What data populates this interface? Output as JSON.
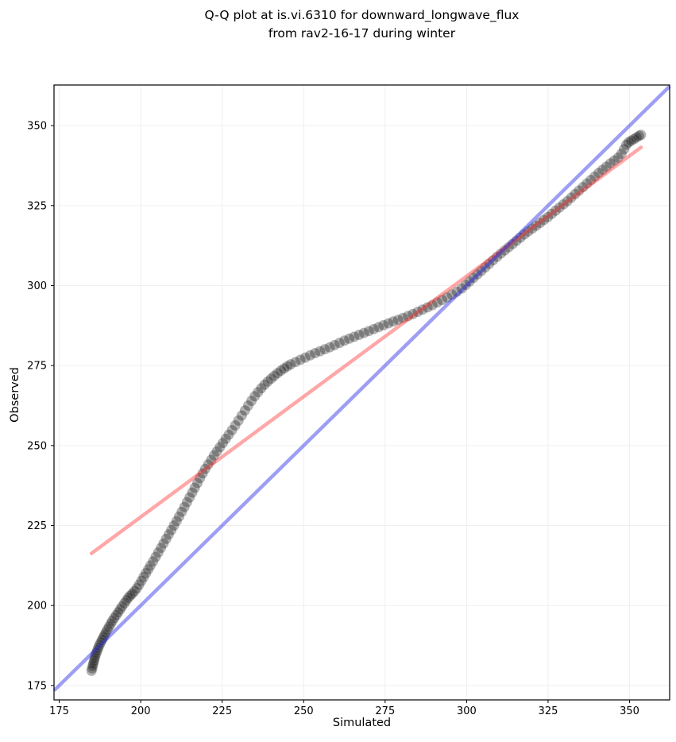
{
  "chart_data": {
    "type": "scatter",
    "subtype": "qq-plot",
    "title": "Q-Q plot at is.vi.6310 for downward_longwave_flux\nfrom rav2-16-17 during winter",
    "title_line1": "Q-Q plot at is.vi.6310 for downward_longwave_flux",
    "title_line2": "from rav2-16-17 during winter",
    "xlabel": "Simulated",
    "ylabel": "Observed",
    "xlim": [
      173.4,
      362.3
    ],
    "ylim": [
      170.5,
      362.7
    ],
    "xticks": [
      175,
      200,
      225,
      250,
      275,
      300,
      325,
      350
    ],
    "yticks": [
      175,
      200,
      225,
      250,
      275,
      300,
      325,
      350
    ],
    "grid": true,
    "grid_color": "#efefef",
    "axis_color": "#000000",
    "legend_position": "none",
    "identity_line": {
      "label": "identity y = x",
      "color": "rgba(40,40,230,0.45)",
      "width": 4.5,
      "x": [
        173.4,
        362.3
      ],
      "y": [
        173.4,
        362.3
      ]
    },
    "fit_line": {
      "label": "linear fit",
      "color": "rgba(255,45,45,0.42)",
      "width": 4.5,
      "x": [
        184.9,
        353.5
      ],
      "y": [
        216.3,
        343.2
      ]
    },
    "point_style": {
      "color": "#000000",
      "opacity": 0.3,
      "radius_px": 6.5
    },
    "points": [
      [
        184.9,
        179.6
      ],
      [
        185.1,
        180.4
      ],
      [
        185.3,
        181.2
      ],
      [
        185.5,
        182.0
      ],
      [
        185.7,
        182.8
      ],
      [
        185.9,
        183.6
      ],
      [
        186.1,
        184.4
      ],
      [
        186.4,
        185.2
      ],
      [
        186.7,
        186.0
      ],
      [
        187.0,
        186.8
      ],
      [
        187.3,
        187.6
      ],
      [
        187.7,
        188.4
      ],
      [
        188.1,
        189.2
      ],
      [
        188.5,
        190.0
      ],
      [
        188.9,
        190.8
      ],
      [
        189.3,
        191.6
      ],
      [
        189.8,
        192.5
      ],
      [
        190.3,
        193.4
      ],
      [
        190.8,
        194.3
      ],
      [
        191.3,
        195.2
      ],
      [
        191.9,
        196.1
      ],
      [
        192.5,
        197.0
      ],
      [
        193.1,
        197.9
      ],
      [
        193.7,
        198.8
      ],
      [
        194.3,
        199.7
      ],
      [
        195.0,
        200.7
      ],
      [
        195.6,
        201.6
      ],
      [
        196.2,
        202.4
      ],
      [
        196.8,
        203.1
      ],
      [
        197.4,
        203.7
      ],
      [
        198.1,
        204.5
      ],
      [
        198.8,
        205.4
      ],
      [
        199.5,
        206.5
      ],
      [
        200.2,
        207.7
      ],
      [
        200.9,
        208.9
      ],
      [
        201.6,
        210.1
      ],
      [
        202.3,
        211.3
      ],
      [
        203.0,
        212.5
      ],
      [
        203.8,
        213.8
      ],
      [
        204.6,
        215.2
      ],
      [
        205.4,
        216.6
      ],
      [
        206.2,
        218.0
      ],
      [
        207.0,
        219.4
      ],
      [
        207.8,
        220.8
      ],
      [
        208.6,
        222.2
      ],
      [
        209.4,
        223.6
      ],
      [
        210.2,
        225.0
      ],
      [
        211.0,
        226.4
      ],
      [
        211.8,
        227.8
      ],
      [
        212.6,
        229.3
      ],
      [
        213.4,
        230.8
      ],
      [
        214.2,
        232.3
      ],
      [
        215.0,
        233.8
      ],
      [
        215.8,
        235.3
      ],
      [
        216.6,
        236.8
      ],
      [
        217.4,
        238.3
      ],
      [
        218.2,
        239.8
      ],
      [
        219.0,
        241.3
      ],
      [
        219.8,
        242.7
      ],
      [
        220.7,
        244.1
      ],
      [
        221.6,
        245.5
      ],
      [
        222.5,
        246.9
      ],
      [
        223.4,
        248.2
      ],
      [
        224.3,
        249.5
      ],
      [
        225.2,
        250.8
      ],
      [
        226.1,
        252.1
      ],
      [
        227.0,
        253.4
      ],
      [
        228.0,
        254.8
      ],
      [
        229.0,
        256.3
      ],
      [
        230.0,
        257.8
      ],
      [
        231.0,
        259.4
      ],
      [
        232.0,
        261.0
      ],
      [
        233.0,
        262.5
      ],
      [
        234.0,
        264.0
      ],
      [
        235.0,
        265.4
      ],
      [
        236.0,
        266.7
      ],
      [
        237.0,
        267.9
      ],
      [
        238.0,
        269.0
      ],
      [
        239.0,
        270.0
      ],
      [
        240.0,
        270.9
      ],
      [
        241.0,
        271.8
      ],
      [
        242.0,
        272.6
      ],
      [
        243.0,
        273.4
      ],
      [
        244.0,
        274.1
      ],
      [
        245.0,
        274.8
      ],
      [
        246.0,
        275.4
      ],
      [
        247.5,
        276.1
      ],
      [
        249.0,
        276.8
      ],
      [
        250.5,
        277.5
      ],
      [
        252.0,
        278.2
      ],
      [
        253.5,
        278.9
      ],
      [
        255.0,
        279.5
      ],
      [
        256.5,
        280.1
      ],
      [
        258.0,
        280.7
      ],
      [
        259.5,
        281.4
      ],
      [
        261.0,
        282.1
      ],
      [
        262.5,
        282.8
      ],
      [
        264.0,
        283.4
      ],
      [
        265.5,
        284.0
      ],
      [
        267.0,
        284.6
      ],
      [
        268.5,
        285.2
      ],
      [
        270.0,
        285.8
      ],
      [
        271.5,
        286.4
      ],
      [
        273.0,
        287.0
      ],
      [
        274.5,
        287.6
      ],
      [
        276.0,
        288.2
      ],
      [
        277.5,
        288.8
      ],
      [
        279.0,
        289.3
      ],
      [
        280.5,
        289.9
      ],
      [
        282.0,
        290.5
      ],
      [
        283.5,
        291.1
      ],
      [
        285.0,
        291.8
      ],
      [
        286.5,
        292.5
      ],
      [
        288.0,
        293.2
      ],
      [
        289.5,
        293.9
      ],
      [
        291.0,
        294.7
      ],
      [
        292.5,
        295.5
      ],
      [
        294.0,
        296.3
      ],
      [
        295.5,
        297.2
      ],
      [
        297.0,
        298.1
      ],
      [
        298.5,
        299.1
      ],
      [
        299.7,
        300.2
      ],
      [
        300.9,
        301.3
      ],
      [
        302.1,
        302.4
      ],
      [
        303.3,
        303.5
      ],
      [
        304.5,
        304.6
      ],
      [
        305.7,
        305.7
      ],
      [
        306.9,
        306.8
      ],
      [
        308.1,
        307.9
      ],
      [
        309.3,
        309.0
      ],
      [
        310.5,
        310.0
      ],
      [
        311.7,
        311.0
      ],
      [
        312.9,
        312.0
      ],
      [
        314.1,
        313.0
      ],
      [
        315.3,
        314.0
      ],
      [
        316.5,
        315.0
      ],
      [
        317.7,
        316.0
      ],
      [
        318.9,
        316.9
      ],
      [
        320.1,
        317.8
      ],
      [
        321.3,
        318.7
      ],
      [
        322.5,
        319.6
      ],
      [
        323.7,
        320.5
      ],
      [
        324.9,
        321.4
      ],
      [
        326.1,
        322.4
      ],
      [
        327.3,
        323.4
      ],
      [
        328.5,
        324.4
      ],
      [
        329.7,
        325.4
      ],
      [
        330.9,
        326.4
      ],
      [
        332.1,
        327.5
      ],
      [
        333.3,
        328.6
      ],
      [
        334.5,
        329.7
      ],
      [
        335.7,
        330.8
      ],
      [
        336.9,
        331.9
      ],
      [
        338.1,
        333.0
      ],
      [
        339.3,
        334.1
      ],
      [
        340.5,
        335.2
      ],
      [
        341.7,
        336.2
      ],
      [
        342.9,
        337.2
      ],
      [
        344.1,
        338.2
      ],
      [
        345.3,
        339.1
      ],
      [
        346.5,
        340.0
      ],
      [
        347.5,
        341.2
      ],
      [
        348.3,
        342.6
      ],
      [
        349.0,
        344.0
      ],
      [
        349.7,
        344.8
      ],
      [
        350.5,
        345.3
      ],
      [
        351.3,
        345.8
      ],
      [
        352.1,
        346.3
      ],
      [
        352.9,
        346.8
      ],
      [
        353.5,
        347.1
      ]
    ]
  }
}
